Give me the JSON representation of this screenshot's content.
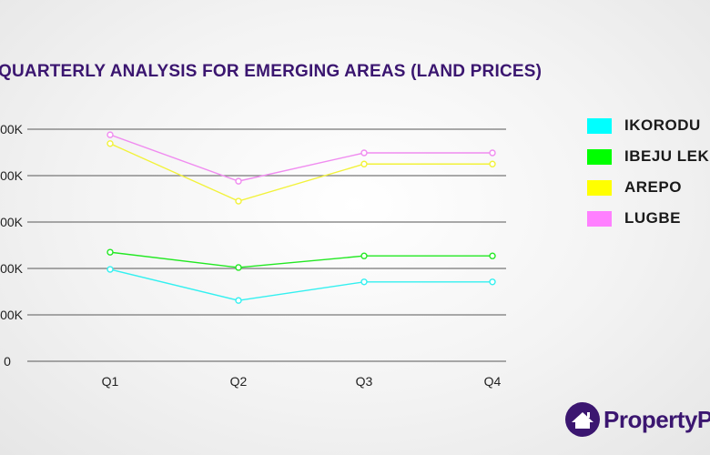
{
  "chart_data": {
    "type": "line",
    "title": "QUARTERLY ANALYSIS FOR EMERGING AREAS (LAND PRICES)",
    "categories": [
      "Q1",
      "Q2",
      "Q3",
      "Q4"
    ],
    "y_ticks": [
      0,
      1,
      2,
      3,
      4,
      5
    ],
    "y_tick_labels": [
      "0",
      "00K",
      "00K",
      "00K",
      "00K",
      "00K"
    ],
    "ylim": [
      0,
      5
    ],
    "grid": true,
    "legend_position": "right",
    "series": [
      {
        "name": "IKORODU",
        "color": "#33f0f0",
        "values": [
          1.98,
          1.31,
          1.71,
          1.71
        ]
      },
      {
        "name": "IBEJU LEKKI",
        "color": "#22e822",
        "values": [
          2.35,
          2.02,
          2.27,
          2.27
        ]
      },
      {
        "name": "AREPO",
        "color": "#f2f23a",
        "values": [
          4.69,
          3.45,
          4.25,
          4.25
        ]
      },
      {
        "name": "LUGBE",
        "color": "#f08cf0",
        "values": [
          4.88,
          3.88,
          4.49,
          4.49
        ]
      }
    ]
  },
  "legend_swatch_colors": [
    "#00ffff",
    "#00ff00",
    "#ffff00",
    "#ff80ff"
  ],
  "brand": {
    "name": "PropertyPro",
    "color": "#3b1670"
  }
}
